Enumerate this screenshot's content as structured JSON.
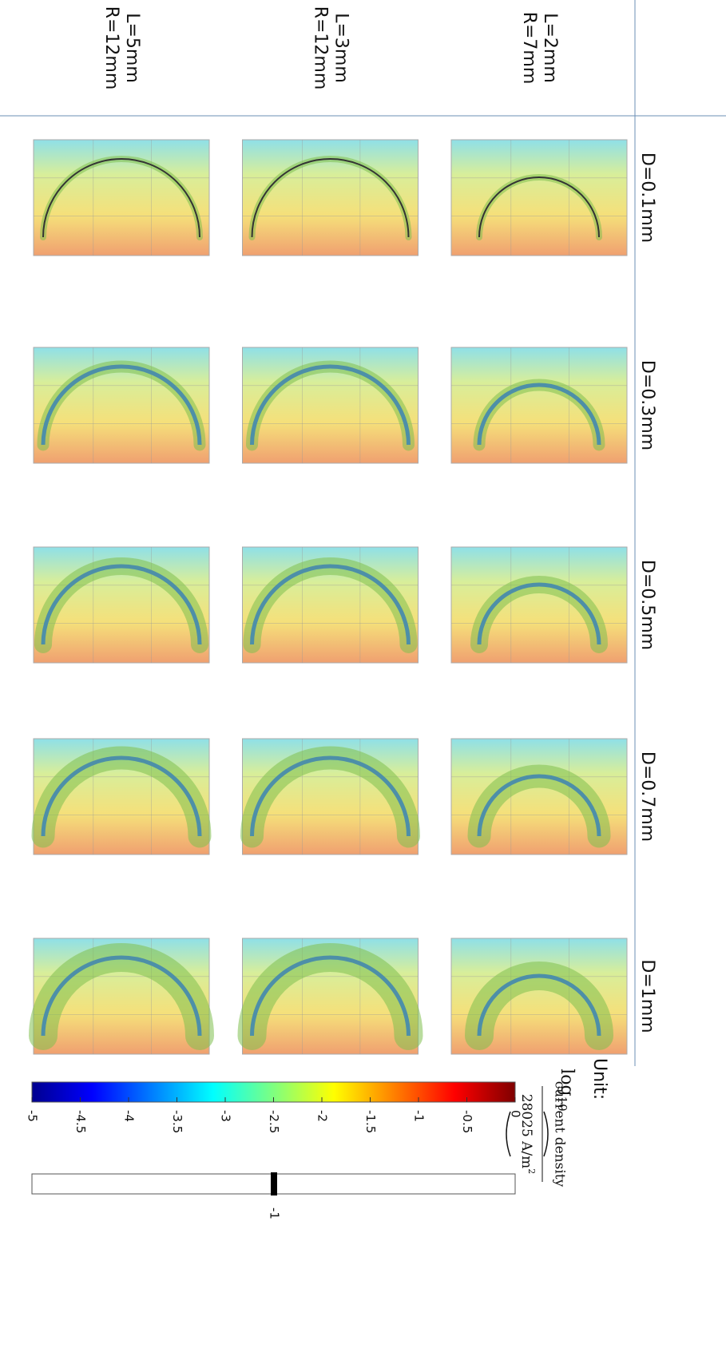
{
  "rows": [
    [
      "L=2mm",
      "R=7mm"
    ],
    [
      "L=3mm",
      "R=12mm"
    ],
    [
      "L=5mm",
      "R=12mm"
    ]
  ],
  "columns": [
    "D=0.1mm",
    "D=0.3mm",
    "D=0.5mm",
    "D=0.7mm",
    "D=1mm"
  ],
  "unit_label": "Unit:",
  "colorbar": {
    "label_prefix": "log",
    "label_subscript": "10",
    "numerator": "current density",
    "denominator": "28025 A/m",
    "denominator_exponent": "2",
    "range": [
      -5,
      0
    ],
    "ticks": [
      -5,
      -4.5,
      -4,
      -3.5,
      -3,
      -2.5,
      -2,
      -1.5,
      -1,
      -0.5,
      0
    ]
  },
  "isosurface": {
    "value": -1
  }
}
